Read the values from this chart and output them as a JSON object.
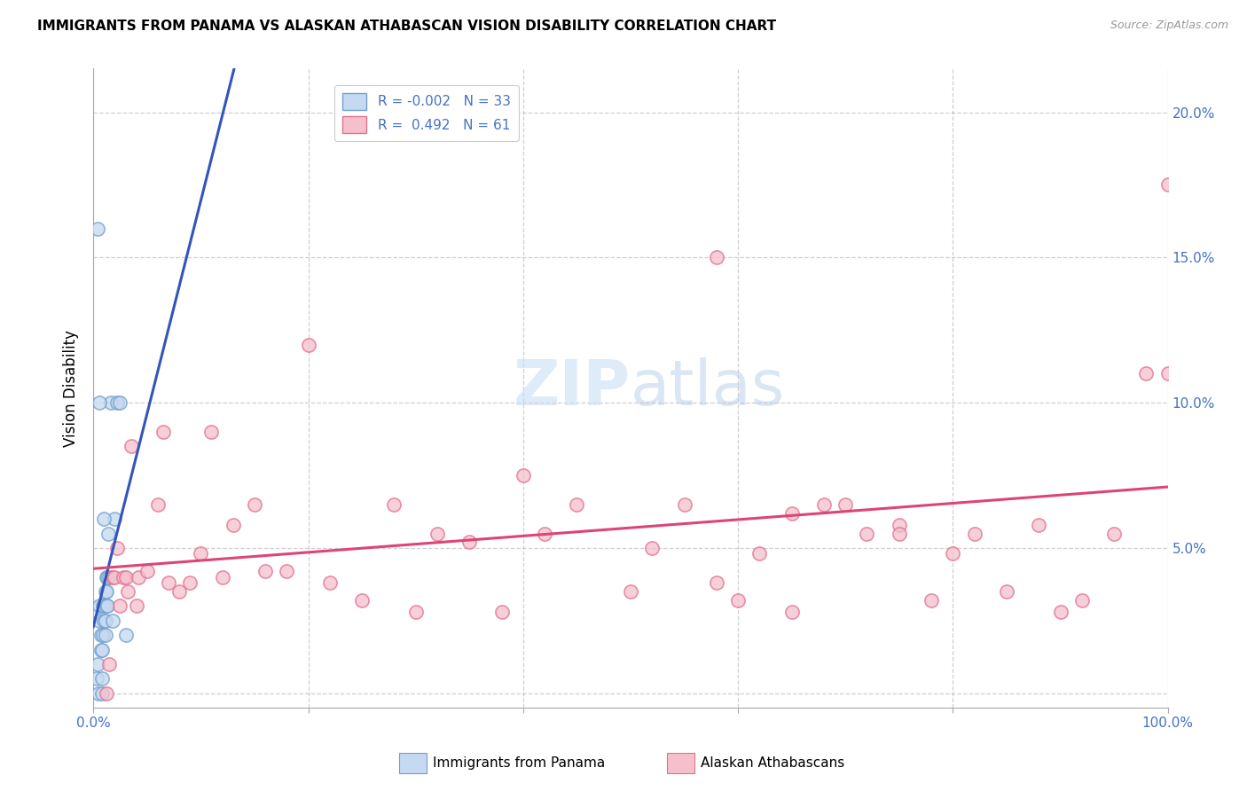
{
  "title": "IMMIGRANTS FROM PANAMA VS ALASKAN ATHABASCAN VISION DISABILITY CORRELATION CHART",
  "source": "Source: ZipAtlas.com",
  "ylabel": "Vision Disability",
  "xlim": [
    0,
    1.0
  ],
  "ylim": [
    -0.005,
    0.215
  ],
  "xticks": [
    0.0,
    0.2,
    0.4,
    0.6,
    0.8,
    1.0
  ],
  "xticklabels": [
    "0.0%",
    "",
    "",
    "",
    "",
    "100.0%"
  ],
  "yticks": [
    0.0,
    0.05,
    0.1,
    0.15,
    0.2
  ],
  "yticklabels": [
    "",
    "5.0%",
    "10.0%",
    "15.0%",
    "20.0%"
  ],
  "legend_r1": "R = -0.002",
  "legend_n1": "N = 33",
  "legend_r2": "R =  0.492",
  "legend_n2": "N = 61",
  "blue_fill": "#c5d9f0",
  "blue_edge": "#6fa0d0",
  "pink_fill": "#f5c0cc",
  "pink_edge": "#e07090",
  "blue_line_color": "#3355bb",
  "pink_line_color": "#dd4477",
  "watermark_color": "#ddeeff",
  "blue_scatter_x": [
    0.003,
    0.004,
    0.005,
    0.006,
    0.006,
    0.007,
    0.007,
    0.008,
    0.008,
    0.008,
    0.009,
    0.009,
    0.01,
    0.01,
    0.011,
    0.011,
    0.011,
    0.012,
    0.012,
    0.012,
    0.013,
    0.013,
    0.014,
    0.015,
    0.016,
    0.018,
    0.02,
    0.022,
    0.025,
    0.03,
    0.01,
    0.004,
    0.006
  ],
  "blue_scatter_y": [
    0.005,
    0.01,
    0.0,
    0.025,
    0.03,
    0.015,
    0.02,
    0.0,
    0.005,
    0.015,
    0.02,
    0.03,
    0.025,
    0.03,
    0.02,
    0.025,
    0.035,
    0.03,
    0.035,
    0.04,
    0.03,
    0.04,
    0.055,
    0.04,
    0.1,
    0.025,
    0.06,
    0.1,
    0.1,
    0.02,
    0.06,
    0.16,
    0.1
  ],
  "pink_scatter_x": [
    0.012,
    0.015,
    0.018,
    0.02,
    0.022,
    0.025,
    0.028,
    0.03,
    0.032,
    0.035,
    0.04,
    0.042,
    0.05,
    0.06,
    0.065,
    0.07,
    0.08,
    0.09,
    0.1,
    0.11,
    0.12,
    0.13,
    0.15,
    0.16,
    0.18,
    0.2,
    0.22,
    0.25,
    0.28,
    0.3,
    0.32,
    0.35,
    0.38,
    0.4,
    0.42,
    0.45,
    0.5,
    0.52,
    0.55,
    0.58,
    0.6,
    0.62,
    0.65,
    0.68,
    0.7,
    0.72,
    0.75,
    0.78,
    0.8,
    0.82,
    0.85,
    0.88,
    0.9,
    0.92,
    0.95,
    0.98,
    1.0,
    1.0,
    0.65,
    0.75,
    0.58
  ],
  "pink_scatter_y": [
    0.0,
    0.01,
    0.04,
    0.04,
    0.05,
    0.03,
    0.04,
    0.04,
    0.035,
    0.085,
    0.03,
    0.04,
    0.042,
    0.065,
    0.09,
    0.038,
    0.035,
    0.038,
    0.048,
    0.09,
    0.04,
    0.058,
    0.065,
    0.042,
    0.042,
    0.12,
    0.038,
    0.032,
    0.065,
    0.028,
    0.055,
    0.052,
    0.028,
    0.075,
    0.055,
    0.065,
    0.035,
    0.05,
    0.065,
    0.038,
    0.032,
    0.048,
    0.028,
    0.065,
    0.065,
    0.055,
    0.058,
    0.032,
    0.048,
    0.055,
    0.035,
    0.058,
    0.028,
    0.032,
    0.055,
    0.11,
    0.175,
    0.11,
    0.062,
    0.055,
    0.15
  ]
}
